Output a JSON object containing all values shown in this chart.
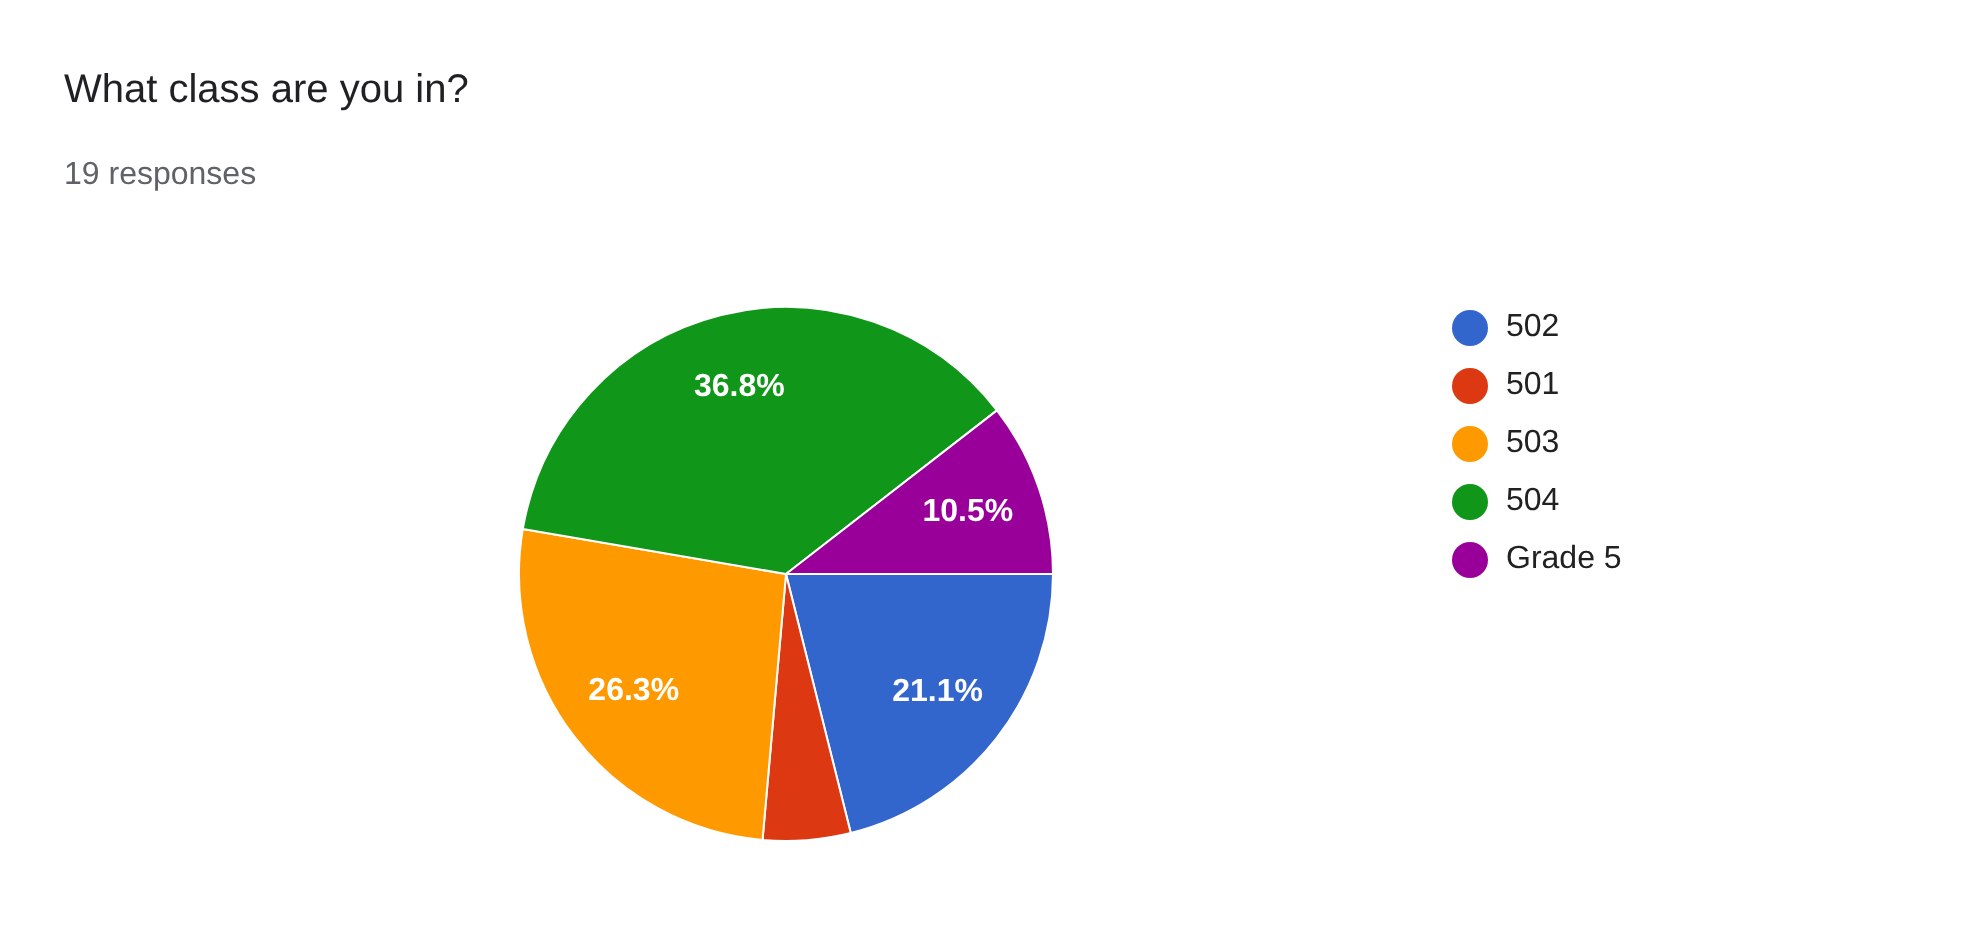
{
  "chart_data": {
    "type": "pie",
    "title": "What class are you in?",
    "subtitle": "19 responses",
    "categories": [
      "502",
      "501",
      "503",
      "504",
      "Grade 5"
    ],
    "values": [
      21.1,
      5.3,
      26.3,
      36.8,
      10.5
    ],
    "colors": [
      "#3366cc",
      "#dc3912",
      "#ff9900",
      "#109618",
      "#990099"
    ],
    "value_labels": [
      "21.1%",
      null,
      "26.3%",
      "36.8%",
      "10.5%"
    ],
    "legend": "right"
  }
}
